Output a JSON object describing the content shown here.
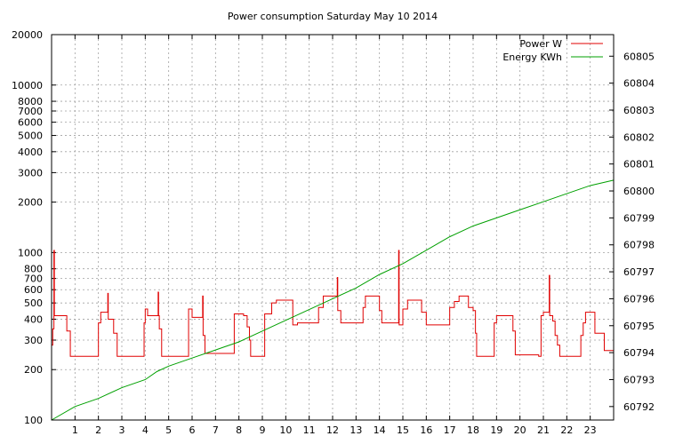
{
  "chart_data": {
    "type": "line",
    "title": "Power consumption Saturday May 10 2014",
    "xlabel": "",
    "ylabel": "",
    "y2label": "",
    "xlim": [
      0,
      24
    ],
    "ylim": [
      100,
      20000
    ],
    "y_scale": "log",
    "y2lim": [
      60791.5,
      60805.8
    ],
    "grid": true,
    "legend_position": "top-right",
    "x_ticks": [
      1,
      2,
      3,
      4,
      5,
      6,
      7,
      8,
      9,
      10,
      11,
      12,
      13,
      14,
      15,
      16,
      17,
      18,
      19,
      20,
      21,
      22,
      23
    ],
    "y_ticks": [
      {
        "value": 100,
        "label": "100"
      },
      {
        "value": 200,
        "label": "200"
      },
      {
        "value": 300,
        "label": "300"
      },
      {
        "value": 400,
        "label": "400"
      },
      {
        "value": 500,
        "label": "500"
      },
      {
        "value": 600,
        "label": "600"
      },
      {
        "value": 700,
        "label": "700"
      },
      {
        "value": 800,
        "label": "800"
      },
      {
        "value": 1000,
        "label": "1000"
      },
      {
        "value": 2000,
        "label": "2000"
      },
      {
        "value": 3000,
        "label": "3000"
      },
      {
        "value": 4000,
        "label": "4000"
      },
      {
        "value": 5000,
        "label": "5000"
      },
      {
        "value": 6000,
        "label": "6000"
      },
      {
        "value": 7000,
        "label": "7000"
      },
      {
        "value": 8000,
        "label": "8000"
      },
      {
        "value": 10000,
        "label": "10000"
      },
      {
        "value": 20000,
        "label": "20000"
      }
    ],
    "y2_ticks": [
      60792,
      60793,
      60794,
      60795,
      60796,
      60797,
      60798,
      60799,
      60800,
      60801,
      60802,
      60803,
      60804,
      60805
    ],
    "series": [
      {
        "name": "Power W",
        "axis": "left",
        "color": "#e00000",
        "step": true,
        "points": [
          [
            0,
            280
          ],
          [
            0.05,
            350
          ],
          [
            0.1,
            1030
          ],
          [
            0.12,
            420
          ],
          [
            0.6,
            420
          ],
          [
            0.65,
            340
          ],
          [
            0.8,
            240
          ],
          [
            1.9,
            240
          ],
          [
            2.0,
            380
          ],
          [
            2.1,
            440
          ],
          [
            2.35,
            440
          ],
          [
            2.4,
            570
          ],
          [
            2.42,
            400
          ],
          [
            2.6,
            400
          ],
          [
            2.65,
            330
          ],
          [
            2.8,
            240
          ],
          [
            3.9,
            240
          ],
          [
            3.95,
            380
          ],
          [
            4.0,
            460
          ],
          [
            4.1,
            420
          ],
          [
            4.5,
            420
          ],
          [
            4.55,
            580
          ],
          [
            4.57,
            420
          ],
          [
            4.6,
            350
          ],
          [
            4.7,
            240
          ],
          [
            5.8,
            240
          ],
          [
            5.85,
            460
          ],
          [
            6.0,
            410
          ],
          [
            6.4,
            410
          ],
          [
            6.45,
            550
          ],
          [
            6.47,
            320
          ],
          [
            6.55,
            250
          ],
          [
            7.7,
            250
          ],
          [
            7.8,
            430
          ],
          [
            8.0,
            430
          ],
          [
            8.2,
            420
          ],
          [
            8.35,
            360
          ],
          [
            8.45,
            300
          ],
          [
            8.5,
            240
          ],
          [
            9.0,
            240
          ],
          [
            9.1,
            430
          ],
          [
            9.4,
            500
          ],
          [
            9.6,
            520
          ],
          [
            10.2,
            520
          ],
          [
            10.3,
            370
          ],
          [
            10.5,
            380
          ],
          [
            11.0,
            380
          ],
          [
            11.3,
            380
          ],
          [
            11.4,
            470
          ],
          [
            11.6,
            550
          ],
          [
            12.1,
            550
          ],
          [
            12.2,
            710
          ],
          [
            12.22,
            450
          ],
          [
            12.35,
            380
          ],
          [
            13.2,
            380
          ],
          [
            13.3,
            470
          ],
          [
            13.4,
            550
          ],
          [
            13.9,
            550
          ],
          [
            14.0,
            450
          ],
          [
            14.1,
            380
          ],
          [
            14.8,
            380
          ],
          [
            14.82,
            1030
          ],
          [
            14.84,
            370
          ],
          [
            15.0,
            460
          ],
          [
            15.2,
            520
          ],
          [
            15.7,
            520
          ],
          [
            15.8,
            440
          ],
          [
            16.0,
            370
          ],
          [
            16.9,
            370
          ],
          [
            17.0,
            470
          ],
          [
            17.2,
            510
          ],
          [
            17.4,
            550
          ],
          [
            17.7,
            550
          ],
          [
            17.8,
            470
          ],
          [
            18.0,
            450
          ],
          [
            18.1,
            330
          ],
          [
            18.15,
            240
          ],
          [
            18.8,
            240
          ],
          [
            18.9,
            380
          ],
          [
            19.0,
            420
          ],
          [
            19.6,
            420
          ],
          [
            19.7,
            340
          ],
          [
            19.8,
            245
          ],
          [
            20.5,
            245
          ],
          [
            20.8,
            240
          ],
          [
            20.9,
            420
          ],
          [
            21.0,
            440
          ],
          [
            21.2,
            440
          ],
          [
            21.25,
            730
          ],
          [
            21.27,
            420
          ],
          [
            21.4,
            390
          ],
          [
            21.5,
            320
          ],
          [
            21.6,
            280
          ],
          [
            21.7,
            240
          ],
          [
            22.5,
            240
          ],
          [
            22.6,
            320
          ],
          [
            22.7,
            380
          ],
          [
            22.8,
            440
          ],
          [
            23.1,
            440
          ],
          [
            23.2,
            330
          ],
          [
            23.5,
            330
          ],
          [
            23.6,
            260
          ],
          [
            24.0,
            260
          ]
        ]
      },
      {
        "name": "Energy KWh",
        "axis": "right",
        "color": "#00a000",
        "step": false,
        "points": [
          [
            0,
            60791.5
          ],
          [
            1,
            60792.0
          ],
          [
            2,
            60792.3
          ],
          [
            3,
            60792.7
          ],
          [
            4,
            60793.0
          ],
          [
            4.5,
            60793.3
          ],
          [
            5,
            60793.5
          ],
          [
            6,
            60793.8
          ],
          [
            7,
            60794.1
          ],
          [
            8,
            60794.4
          ],
          [
            9,
            60794.8
          ],
          [
            10,
            60795.2
          ],
          [
            11,
            60795.6
          ],
          [
            12,
            60796.0
          ],
          [
            13,
            60796.4
          ],
          [
            14,
            60796.9
          ],
          [
            15,
            60797.3
          ],
          [
            16,
            60797.8
          ],
          [
            17,
            60798.3
          ],
          [
            18,
            60798.7
          ],
          [
            19,
            60799.0
          ],
          [
            20,
            60799.3
          ],
          [
            21,
            60799.6
          ],
          [
            22,
            60799.9
          ],
          [
            23,
            60800.2
          ],
          [
            24,
            60800.4
          ]
        ]
      }
    ]
  }
}
